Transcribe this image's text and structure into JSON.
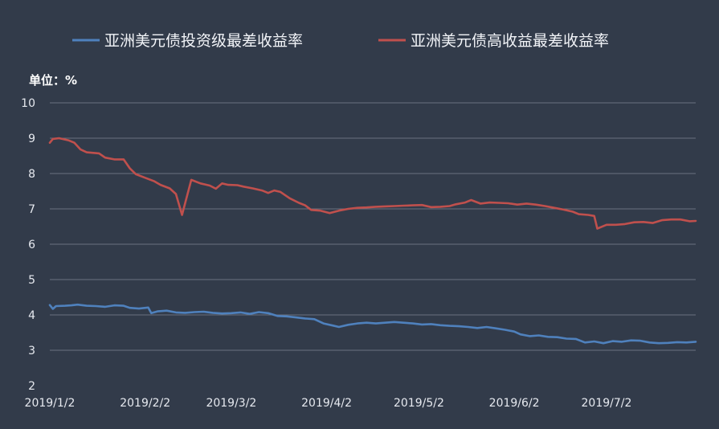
{
  "chart_data": {
    "type": "line",
    "unit_label": "单位：%",
    "ylim": [
      2,
      10
    ],
    "yticks": [
      2,
      3,
      4,
      5,
      6,
      7,
      8,
      9,
      10
    ],
    "grid": true,
    "legend_position": "top",
    "x_tick_labels": [
      "2019/1/2",
      "2019/2/2",
      "2019/3/2",
      "2019/4/2",
      "2019/5/2",
      "2019/6/2",
      "2019/7/2"
    ],
    "x_ticks": [
      "2019-01-02",
      "2019-02-02",
      "2019-03-02",
      "2019-04-02",
      "2019-05-02",
      "2019-06-02",
      "2019-07-02"
    ],
    "x_range": [
      "2019-01-02",
      "2019-07-31"
    ],
    "series": [
      {
        "name": "亚洲美元债投资级最差收益率",
        "color": "#4f81bd",
        "points": [
          [
            "2019-01-02",
            4.28
          ],
          [
            "2019-01-03",
            4.17
          ],
          [
            "2019-01-04",
            4.25
          ],
          [
            "2019-01-07",
            4.26
          ],
          [
            "2019-01-09",
            4.27
          ],
          [
            "2019-01-11",
            4.29
          ],
          [
            "2019-01-14",
            4.26
          ],
          [
            "2019-01-17",
            4.25
          ],
          [
            "2019-01-20",
            4.23
          ],
          [
            "2019-01-23",
            4.27
          ],
          [
            "2019-01-26",
            4.26
          ],
          [
            "2019-01-28",
            4.2
          ],
          [
            "2019-01-31",
            4.18
          ],
          [
            "2019-02-03",
            4.21
          ],
          [
            "2019-02-04",
            4.05
          ],
          [
            "2019-02-06",
            4.1
          ],
          [
            "2019-02-09",
            4.12
          ],
          [
            "2019-02-12",
            4.07
          ],
          [
            "2019-02-15",
            4.06
          ],
          [
            "2019-02-18",
            4.08
          ],
          [
            "2019-02-21",
            4.09
          ],
          [
            "2019-02-24",
            4.06
          ],
          [
            "2019-02-27",
            4.04
          ],
          [
            "2019-03-02",
            4.05
          ],
          [
            "2019-03-05",
            4.07
          ],
          [
            "2019-03-08",
            4.03
          ],
          [
            "2019-03-11",
            4.08
          ],
          [
            "2019-03-14",
            4.05
          ],
          [
            "2019-03-17",
            3.97
          ],
          [
            "2019-03-20",
            3.96
          ],
          [
            "2019-03-23",
            3.93
          ],
          [
            "2019-03-26",
            3.9
          ],
          [
            "2019-03-29",
            3.88
          ],
          [
            "2019-04-01",
            3.76
          ],
          [
            "2019-04-04",
            3.7
          ],
          [
            "2019-04-06",
            3.66
          ],
          [
            "2019-04-09",
            3.72
          ],
          [
            "2019-04-12",
            3.76
          ],
          [
            "2019-04-15",
            3.78
          ],
          [
            "2019-04-18",
            3.76
          ],
          [
            "2019-04-21",
            3.78
          ],
          [
            "2019-04-24",
            3.8
          ],
          [
            "2019-04-27",
            3.78
          ],
          [
            "2019-04-30",
            3.76
          ],
          [
            "2019-05-03",
            3.73
          ],
          [
            "2019-05-06",
            3.74
          ],
          [
            "2019-05-09",
            3.71
          ],
          [
            "2019-05-12",
            3.69
          ],
          [
            "2019-05-15",
            3.68
          ],
          [
            "2019-05-18",
            3.66
          ],
          [
            "2019-05-21",
            3.63
          ],
          [
            "2019-05-24",
            3.66
          ],
          [
            "2019-05-27",
            3.62
          ],
          [
            "2019-05-30",
            3.58
          ],
          [
            "2019-06-02",
            3.53
          ],
          [
            "2019-06-04",
            3.45
          ],
          [
            "2019-06-07",
            3.4
          ],
          [
            "2019-06-10",
            3.42
          ],
          [
            "2019-06-13",
            3.38
          ],
          [
            "2019-06-16",
            3.37
          ],
          [
            "2019-06-19",
            3.33
          ],
          [
            "2019-06-22",
            3.32
          ],
          [
            "2019-06-25",
            3.22
          ],
          [
            "2019-06-28",
            3.25
          ],
          [
            "2019-07-01",
            3.2
          ],
          [
            "2019-07-04",
            3.26
          ],
          [
            "2019-07-07",
            3.24
          ],
          [
            "2019-07-10",
            3.28
          ],
          [
            "2019-07-13",
            3.27
          ],
          [
            "2019-07-16",
            3.22
          ],
          [
            "2019-07-19",
            3.2
          ],
          [
            "2019-07-22",
            3.21
          ],
          [
            "2019-07-25",
            3.23
          ],
          [
            "2019-07-28",
            3.22
          ],
          [
            "2019-07-31",
            3.24
          ]
        ]
      },
      {
        "name": "亚洲美元债高收益最差收益率",
        "color": "#c0504d",
        "points": [
          [
            "2019-01-02",
            8.87
          ],
          [
            "2019-01-03",
            8.98
          ],
          [
            "2019-01-05",
            9.0
          ],
          [
            "2019-01-08",
            8.94
          ],
          [
            "2019-01-10",
            8.87
          ],
          [
            "2019-01-12",
            8.68
          ],
          [
            "2019-01-14",
            8.6
          ],
          [
            "2019-01-18",
            8.57
          ],
          [
            "2019-01-20",
            8.45
          ],
          [
            "2019-01-23",
            8.4
          ],
          [
            "2019-01-26",
            8.4
          ],
          [
            "2019-01-28",
            8.15
          ],
          [
            "2019-01-30",
            7.98
          ],
          [
            "2019-02-02",
            7.88
          ],
          [
            "2019-02-05",
            7.78
          ],
          [
            "2019-02-07",
            7.68
          ],
          [
            "2019-02-10",
            7.58
          ],
          [
            "2019-02-12",
            7.42
          ],
          [
            "2019-02-14",
            6.83
          ],
          [
            "2019-02-17",
            7.82
          ],
          [
            "2019-02-20",
            7.72
          ],
          [
            "2019-02-23",
            7.66
          ],
          [
            "2019-02-25",
            7.57
          ],
          [
            "2019-02-27",
            7.72
          ],
          [
            "2019-03-01",
            7.68
          ],
          [
            "2019-03-04",
            7.67
          ],
          [
            "2019-03-06",
            7.63
          ],
          [
            "2019-03-09",
            7.58
          ],
          [
            "2019-03-12",
            7.52
          ],
          [
            "2019-03-14",
            7.45
          ],
          [
            "2019-03-16",
            7.52
          ],
          [
            "2019-03-18",
            7.48
          ],
          [
            "2019-03-21",
            7.3
          ],
          [
            "2019-03-24",
            7.17
          ],
          [
            "2019-03-26",
            7.1
          ],
          [
            "2019-03-28",
            6.97
          ],
          [
            "2019-03-31",
            6.95
          ],
          [
            "2019-04-03",
            6.88
          ],
          [
            "2019-04-06",
            6.95
          ],
          [
            "2019-04-09",
            7.0
          ],
          [
            "2019-04-12",
            7.03
          ],
          [
            "2019-04-15",
            7.04
          ],
          [
            "2019-04-18",
            7.06
          ],
          [
            "2019-04-21",
            7.07
          ],
          [
            "2019-04-24",
            7.08
          ],
          [
            "2019-04-27",
            7.09
          ],
          [
            "2019-04-30",
            7.1
          ],
          [
            "2019-05-03",
            7.11
          ],
          [
            "2019-05-06",
            7.05
          ],
          [
            "2019-05-09",
            7.06
          ],
          [
            "2019-05-12",
            7.08
          ],
          [
            "2019-05-14",
            7.13
          ],
          [
            "2019-05-17",
            7.18
          ],
          [
            "2019-05-19",
            7.25
          ],
          [
            "2019-05-22",
            7.15
          ],
          [
            "2019-05-25",
            7.18
          ],
          [
            "2019-05-28",
            7.17
          ],
          [
            "2019-05-31",
            7.16
          ],
          [
            "2019-06-03",
            7.12
          ],
          [
            "2019-06-06",
            7.15
          ],
          [
            "2019-06-09",
            7.12
          ],
          [
            "2019-06-12",
            7.08
          ],
          [
            "2019-06-15",
            7.03
          ],
          [
            "2019-06-18",
            6.98
          ],
          [
            "2019-06-21",
            6.92
          ],
          [
            "2019-06-23",
            6.85
          ],
          [
            "2019-06-26",
            6.83
          ],
          [
            "2019-06-28",
            6.8
          ],
          [
            "2019-06-29",
            6.44
          ],
          [
            "2019-07-02",
            6.55
          ],
          [
            "2019-07-05",
            6.55
          ],
          [
            "2019-07-08",
            6.57
          ],
          [
            "2019-07-11",
            6.62
          ],
          [
            "2019-07-14",
            6.63
          ],
          [
            "2019-07-17",
            6.6
          ],
          [
            "2019-07-20",
            6.68
          ],
          [
            "2019-07-23",
            6.7
          ],
          [
            "2019-07-26",
            6.7
          ],
          [
            "2019-07-29",
            6.65
          ],
          [
            "2019-07-31",
            6.66
          ]
        ]
      }
    ]
  }
}
